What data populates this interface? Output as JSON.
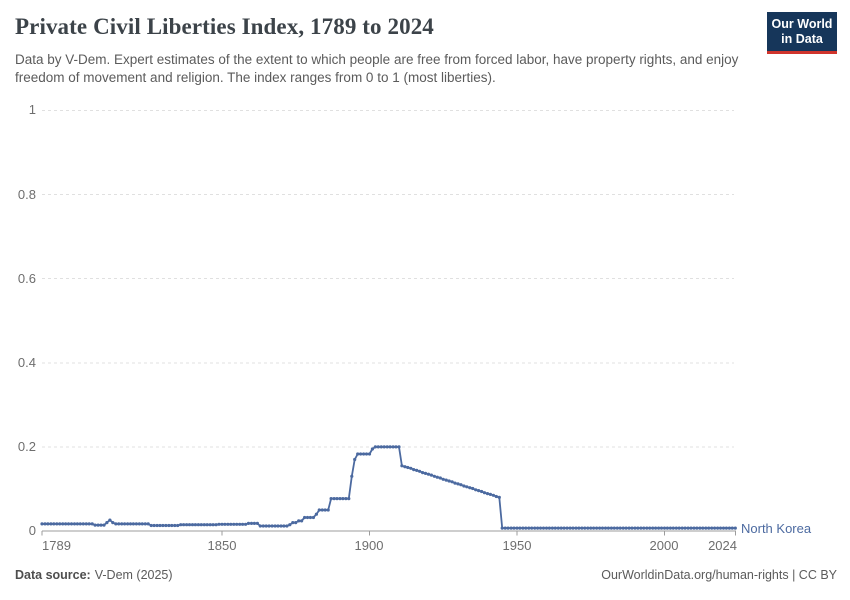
{
  "header": {
    "title": "Private Civil Liberties Index, 1789 to 2024",
    "subtitle": "Data by V-Dem. Expert estimates of the extent to which people are free from forced labor, have property rights, and enjoy freedom of movement and religion. The index ranges from 0 to 1 (most liberties).",
    "logo": {
      "line1": "Our World",
      "line2": "in Data",
      "bg_color": "#16365a",
      "accent_color": "#d0342c"
    }
  },
  "chart_data": {
    "type": "line",
    "title": "Private Civil Liberties Index, 1789 to 2024",
    "xlabel": "",
    "ylabel": "",
    "grid": "dashed-horizontal",
    "legend_position": "end-of-line",
    "x": {
      "range": [
        1789,
        2024
      ],
      "ticks": [
        1789,
        1850,
        1900,
        1950,
        2000,
        2024
      ],
      "tick_labels": [
        "1789",
        "1850",
        "1900",
        "1950",
        "2000",
        "2024"
      ]
    },
    "y": {
      "range": [
        0,
        1
      ],
      "ticks": [
        0,
        0.2,
        0.4,
        0.6,
        0.8,
        1
      ],
      "tick_labels_top_down": [
        "1",
        "0.8",
        "0.6",
        "0.4",
        "0.2",
        "0"
      ]
    },
    "series": [
      {
        "name": "North Korea",
        "color": "#4c6aa0",
        "start_year": 1789,
        "end_year": 2024,
        "values": [
          0.017,
          0.017,
          0.017,
          0.017,
          0.017,
          0.017,
          0.017,
          0.017,
          0.017,
          0.017,
          0.017,
          0.017,
          0.017,
          0.017,
          0.017,
          0.017,
          0.017,
          0.017,
          0.014,
          0.014,
          0.014,
          0.014,
          0.02,
          0.026,
          0.02,
          0.017,
          0.017,
          0.017,
          0.017,
          0.017,
          0.017,
          0.017,
          0.017,
          0.017,
          0.017,
          0.017,
          0.017,
          0.013,
          0.013,
          0.013,
          0.013,
          0.013,
          0.013,
          0.013,
          0.013,
          0.013,
          0.013,
          0.015,
          0.015,
          0.015,
          0.015,
          0.015,
          0.015,
          0.015,
          0.015,
          0.015,
          0.015,
          0.015,
          0.015,
          0.015,
          0.016,
          0.016,
          0.016,
          0.016,
          0.016,
          0.016,
          0.016,
          0.016,
          0.016,
          0.016,
          0.018,
          0.018,
          0.018,
          0.018,
          0.012,
          0.012,
          0.012,
          0.012,
          0.012,
          0.012,
          0.012,
          0.012,
          0.012,
          0.012,
          0.015,
          0.02,
          0.02,
          0.024,
          0.024,
          0.032,
          0.032,
          0.032,
          0.032,
          0.04,
          0.05,
          0.05,
          0.05,
          0.05,
          0.077,
          0.077,
          0.077,
          0.077,
          0.077,
          0.077,
          0.077,
          0.13,
          0.17,
          0.183,
          0.183,
          0.183,
          0.183,
          0.183,
          0.195,
          0.2,
          0.2,
          0.2,
          0.2,
          0.2,
          0.2,
          0.2,
          0.2,
          0.2,
          0.155,
          0.153,
          0.151,
          0.149,
          0.146,
          0.144,
          0.142,
          0.139,
          0.137,
          0.135,
          0.133,
          0.13,
          0.128,
          0.126,
          0.123,
          0.121,
          0.119,
          0.117,
          0.114,
          0.112,
          0.11,
          0.107,
          0.105,
          0.103,
          0.101,
          0.098,
          0.096,
          0.094,
          0.091,
          0.089,
          0.087,
          0.085,
          0.082,
          0.08,
          0.007,
          0.007,
          0.007,
          0.007,
          0.007,
          0.007,
          0.007,
          0.007,
          0.007,
          0.007,
          0.007,
          0.007,
          0.007,
          0.007,
          0.007,
          0.007,
          0.007,
          0.007,
          0.007,
          0.007,
          0.007,
          0.007,
          0.007,
          0.007,
          0.007,
          0.007,
          0.007,
          0.007,
          0.007,
          0.007,
          0.007,
          0.007,
          0.007,
          0.007,
          0.007,
          0.007,
          0.007,
          0.007,
          0.007,
          0.007,
          0.007,
          0.007,
          0.007,
          0.007,
          0.007,
          0.007,
          0.007,
          0.007,
          0.007,
          0.007,
          0.007,
          0.007,
          0.007,
          0.007,
          0.007,
          0.007,
          0.007,
          0.007,
          0.007,
          0.007,
          0.007,
          0.007,
          0.007,
          0.007,
          0.007,
          0.007,
          0.007,
          0.007,
          0.007,
          0.007,
          0.007,
          0.007,
          0.007,
          0.007,
          0.007,
          0.007,
          0.007,
          0.007,
          0.007,
          0.007
        ]
      }
    ]
  },
  "footer": {
    "datasource_label": "Data source:",
    "datasource_value": "V-Dem (2025)",
    "credit": "OurWorldinData.org/human-rights | CC BY"
  }
}
